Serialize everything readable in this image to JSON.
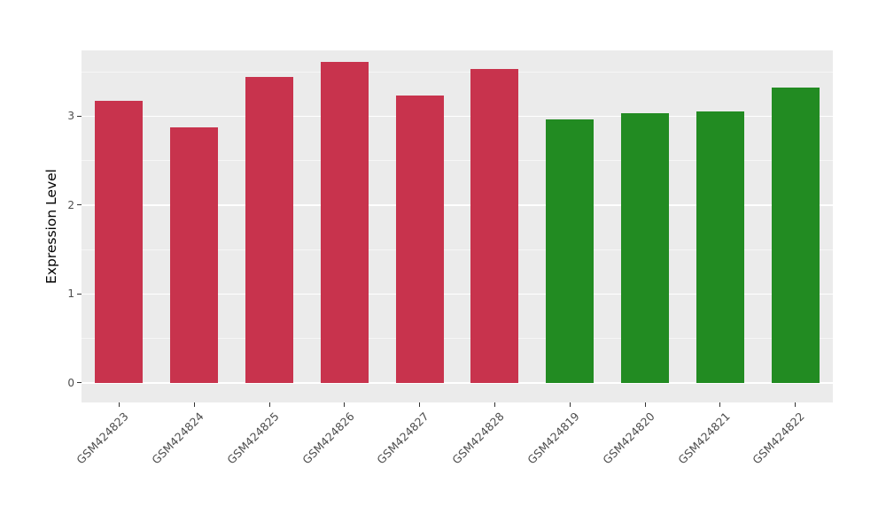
{
  "chart_data": {
    "type": "bar",
    "title": "",
    "xlabel": "",
    "ylabel": "Expression Level",
    "categories": [
      "GSM424823",
      "GSM424824",
      "GSM424825",
      "GSM424826",
      "GSM424827",
      "GSM424828",
      "GSM424819",
      "GSM424820",
      "GSM424821",
      "GSM424822"
    ],
    "values": [
      3.17,
      2.87,
      3.44,
      3.61,
      3.23,
      3.53,
      2.96,
      3.03,
      3.05,
      3.32
    ],
    "bar_colors": [
      "#C8334D",
      "#C8334D",
      "#C8334D",
      "#C8334D",
      "#C8334D",
      "#C8334D",
      "#228B22",
      "#228B22",
      "#228B22",
      "#228B22"
    ],
    "group_colors": {
      "first_six": "#C8334D",
      "last_four": "#228B22"
    },
    "yticks": [
      0,
      1,
      2,
      3
    ],
    "ytick_labels": [
      "0",
      "1",
      "2",
      "3"
    ],
    "minor_yticks": [
      0.5,
      1.5,
      2.5,
      3.5
    ],
    "ylim": [
      0,
      3.8
    ],
    "grid": "on",
    "legend": "none",
    "panel_background": "#EBEBEB",
    "grid_color": "#FFFFFF",
    "tick_label_color": "#4D4D4D"
  }
}
